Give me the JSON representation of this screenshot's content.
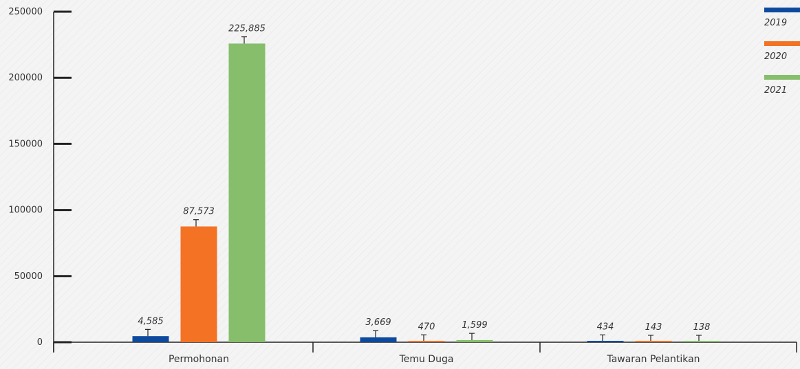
{
  "chart_data": {
    "type": "bar",
    "categories": [
      "Permohonan",
      "Temu Duga",
      "Tawaran Pelantikan"
    ],
    "series": [
      {
        "name": "2019",
        "color": "#0d4a9e",
        "values": [
          4585,
          3669,
          434
        ],
        "labels": [
          "4,585",
          "3,669",
          "434"
        ]
      },
      {
        "name": "2020",
        "color": "#f47224",
        "values": [
          87573,
          470,
          143
        ],
        "labels": [
          "87,573",
          "470",
          "143"
        ]
      },
      {
        "name": "2021",
        "color": "#86be6b",
        "values": [
          225885,
          1599,
          138
        ],
        "labels": [
          "225,885",
          "1,599",
          "138"
        ]
      }
    ],
    "error_bar": 2500,
    "y_ticks": [
      "0",
      "50000",
      "100000",
      "150000",
      "200000",
      "250000"
    ],
    "ylim": [
      0,
      250000
    ],
    "legend_position": "top-right",
    "grid": false
  }
}
